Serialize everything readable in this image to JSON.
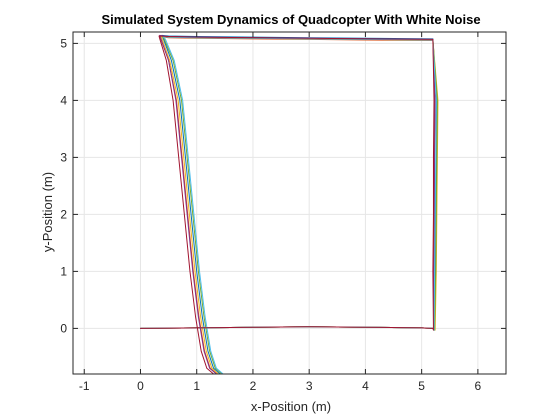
{
  "chart_data": {
    "type": "line",
    "title": "Simulated System Dynamics of Quadcopter With White Noise",
    "xlabel": "x-Position (m)",
    "ylabel": "y-Position (m)",
    "xlim": [
      -1.2,
      6.5
    ],
    "ylim": [
      -0.8,
      5.2
    ],
    "xticks": [
      -1,
      0,
      1,
      2,
      3,
      4,
      5,
      6
    ],
    "xtick_labels": [
      "-1",
      "0",
      "1",
      "2",
      "3",
      "4",
      "5",
      "6"
    ],
    "yticks": [
      0,
      1,
      2,
      3,
      4,
      5
    ],
    "ytick_labels": [
      "0",
      "1",
      "2",
      "3",
      "4",
      "5"
    ],
    "grid": true,
    "legend": "none",
    "series": [
      {
        "color": "#0072BD",
        "offset": 0.06,
        "x": [
          0.0,
          1.0,
          2.0,
          3.0,
          4.0,
          5.0,
          5.2,
          5.23,
          5.24,
          5.25,
          5.26,
          5.27,
          5.2,
          4.0,
          3.0,
          2.0,
          1.0,
          0.5,
          0.38,
          0.4,
          0.55,
          0.7,
          0.8,
          0.9,
          1.0,
          1.1,
          1.2,
          1.3,
          1.42
        ],
        "y": [
          0.0,
          0.01,
          0.02,
          0.03,
          0.02,
          0.01,
          0.0,
          -0.03,
          1.0,
          2.0,
          3.0,
          4.0,
          5.08,
          5.09,
          5.1,
          5.11,
          5.12,
          5.13,
          5.14,
          5.1,
          4.7,
          4.0,
          3.0,
          2.0,
          1.0,
          0.2,
          -0.4,
          -0.7,
          -0.8
        ]
      },
      {
        "color": "#D95319",
        "offset": -0.04,
        "x": [
          0.0,
          1.0,
          2.0,
          3.0,
          4.0,
          5.0,
          5.2,
          5.22,
          5.21,
          5.22,
          5.22,
          5.23,
          5.2,
          4.0,
          3.0,
          2.0,
          1.0,
          0.5,
          0.35,
          0.36,
          0.5,
          0.64,
          0.74,
          0.84,
          0.94,
          1.04,
          1.14,
          1.24,
          1.36
        ],
        "y": [
          0.0,
          0.01,
          0.02,
          0.03,
          0.02,
          0.01,
          0.0,
          -0.03,
          1.0,
          2.0,
          3.0,
          4.0,
          5.05,
          5.06,
          5.07,
          5.08,
          5.09,
          5.1,
          5.12,
          5.08,
          4.7,
          4.0,
          3.0,
          2.0,
          1.0,
          0.2,
          -0.4,
          -0.7,
          -0.8
        ]
      },
      {
        "color": "#EDB120",
        "offset": 0.0,
        "x": [
          0.0,
          1.0,
          2.0,
          3.0,
          4.0,
          5.0,
          5.2,
          5.24,
          5.26,
          5.27,
          5.28,
          5.29,
          5.2,
          4.0,
          3.0,
          2.0,
          1.0,
          0.5,
          0.36,
          0.38,
          0.52,
          0.67,
          0.77,
          0.87,
          0.97,
          1.07,
          1.17,
          1.27,
          1.39
        ],
        "y": [
          0.0,
          0.01,
          0.02,
          0.03,
          0.02,
          0.01,
          0.0,
          -0.03,
          1.0,
          2.0,
          3.0,
          4.0,
          5.06,
          5.07,
          5.08,
          5.09,
          5.1,
          5.11,
          5.13,
          5.09,
          4.7,
          4.0,
          3.0,
          2.0,
          1.0,
          0.2,
          -0.4,
          -0.7,
          -0.8
        ]
      },
      {
        "color": "#7E2F8E",
        "offset": 0.02,
        "x": [
          0.0,
          1.0,
          2.0,
          3.0,
          4.0,
          5.0,
          5.2,
          5.22,
          5.22,
          5.23,
          5.23,
          5.24,
          5.2,
          4.0,
          3.0,
          2.0,
          1.0,
          0.5,
          0.34,
          0.36,
          0.5,
          0.63,
          0.73,
          0.83,
          0.93,
          1.03,
          1.13,
          1.23,
          1.35
        ],
        "y": [
          0.0,
          0.01,
          0.02,
          0.03,
          0.02,
          0.01,
          0.0,
          -0.03,
          1.0,
          2.0,
          3.0,
          4.0,
          5.07,
          5.08,
          5.09,
          5.1,
          5.11,
          5.12,
          5.14,
          5.09,
          4.7,
          4.0,
          3.0,
          2.0,
          1.0,
          0.2,
          -0.4,
          -0.7,
          -0.8
        ]
      },
      {
        "color": "#77AC30",
        "offset": 0.08,
        "x": [
          0.0,
          1.0,
          2.0,
          3.0,
          4.0,
          5.0,
          5.2,
          5.23,
          5.25,
          5.26,
          5.27,
          5.28,
          5.2,
          4.0,
          3.0,
          2.0,
          1.0,
          0.5,
          0.39,
          0.42,
          0.58,
          0.73,
          0.83,
          0.93,
          1.03,
          1.13,
          1.23,
          1.33,
          1.45
        ],
        "y": [
          0.0,
          0.01,
          0.02,
          0.03,
          0.02,
          0.01,
          0.0,
          -0.03,
          1.0,
          2.0,
          3.0,
          4.0,
          5.06,
          5.07,
          5.08,
          5.09,
          5.1,
          5.11,
          5.12,
          5.08,
          4.7,
          4.0,
          3.0,
          2.0,
          1.0,
          0.2,
          -0.4,
          -0.7,
          -0.8
        ]
      },
      {
        "color": "#4DBEEE",
        "offset": 0.1,
        "x": [
          0.0,
          1.0,
          2.0,
          3.0,
          4.0,
          5.0,
          5.2,
          5.22,
          5.23,
          5.24,
          5.25,
          5.26,
          5.2,
          4.0,
          3.0,
          2.0,
          1.0,
          0.5,
          0.4,
          0.44,
          0.6,
          0.75,
          0.85,
          0.95,
          1.05,
          1.15,
          1.25,
          1.35,
          1.47
        ],
        "y": [
          0.0,
          0.01,
          0.02,
          0.03,
          0.02,
          0.01,
          0.0,
          -0.03,
          1.0,
          2.0,
          3.0,
          4.0,
          5.06,
          5.07,
          5.08,
          5.09,
          5.1,
          5.11,
          5.12,
          5.08,
          4.7,
          4.0,
          3.0,
          2.0,
          1.0,
          0.2,
          -0.4,
          -0.7,
          -0.8
        ]
      },
      {
        "color": "#A2142F",
        "offset": -0.08,
        "x": [
          0.0,
          1.0,
          2.0,
          3.0,
          4.0,
          5.0,
          5.2,
          5.21,
          5.2,
          5.21,
          5.21,
          5.22,
          5.2,
          4.0,
          3.0,
          2.0,
          1.0,
          0.5,
          0.33,
          0.34,
          0.46,
          0.58,
          0.68,
          0.78,
          0.88,
          0.98,
          1.08,
          1.18,
          1.3
        ],
        "y": [
          0.0,
          0.01,
          0.02,
          0.03,
          0.02,
          0.01,
          0.0,
          -0.03,
          1.0,
          2.0,
          3.0,
          4.0,
          5.07,
          5.08,
          5.09,
          5.1,
          5.11,
          5.12,
          5.13,
          5.09,
          4.7,
          4.0,
          3.0,
          2.0,
          1.0,
          0.2,
          -0.4,
          -0.7,
          -0.8
        ]
      }
    ],
    "colors": {
      "axis": "#262626",
      "grid": "#e6e6e6",
      "background": "#ffffff"
    }
  }
}
